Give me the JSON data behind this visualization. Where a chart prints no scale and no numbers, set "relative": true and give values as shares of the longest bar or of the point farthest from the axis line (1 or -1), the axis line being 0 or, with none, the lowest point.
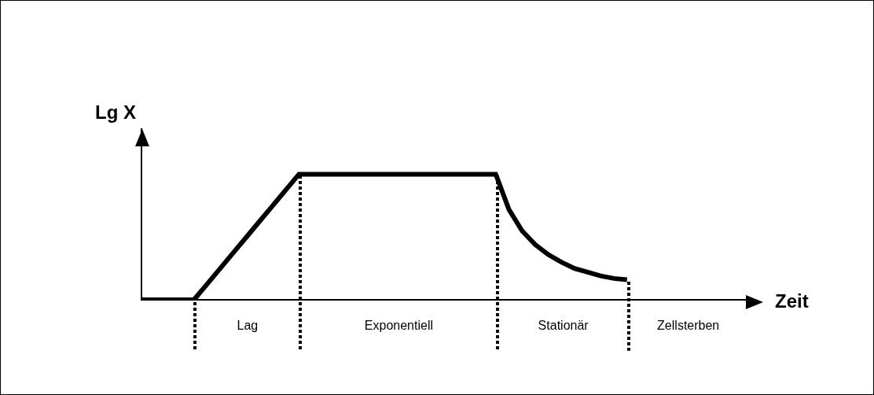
{
  "chart_data": {
    "type": "line",
    "relative": true,
    "xlabel": "Zeit",
    "ylabel": "Lg X",
    "color": "#000000",
    "categories": [
      null,
      null,
      null,
      null,
      null,
      null,
      null,
      null,
      null,
      null,
      null,
      null,
      null,
      null,
      null,
      null,
      null,
      null,
      null,
      null,
      null,
      null,
      null,
      null,
      null,
      null,
      null,
      null,
      null,
      null,
      null,
      null,
      null,
      null,
      null,
      null,
      null,
      null,
      null,
      null,
      null,
      null,
      null,
      null,
      null,
      null,
      null
    ],
    "values": [
      0,
      0,
      0,
      0,
      0,
      0.125,
      0.25,
      0.375,
      0.5,
      0.625,
      0.75,
      0.875,
      1,
      1,
      1,
      1,
      1,
      1,
      1,
      1,
      1,
      1,
      1,
      1,
      1,
      1,
      1,
      1,
      0.72,
      0.55,
      0.44,
      0.36,
      0.3,
      0.25,
      0.22,
      0.19,
      0.17,
      0.16,
      null,
      null,
      null,
      null,
      null,
      null,
      null,
      null,
      null
    ],
    "annotations": [
      "Lag",
      "Exponentiell",
      "Stationär",
      "Zellsterben"
    ]
  }
}
